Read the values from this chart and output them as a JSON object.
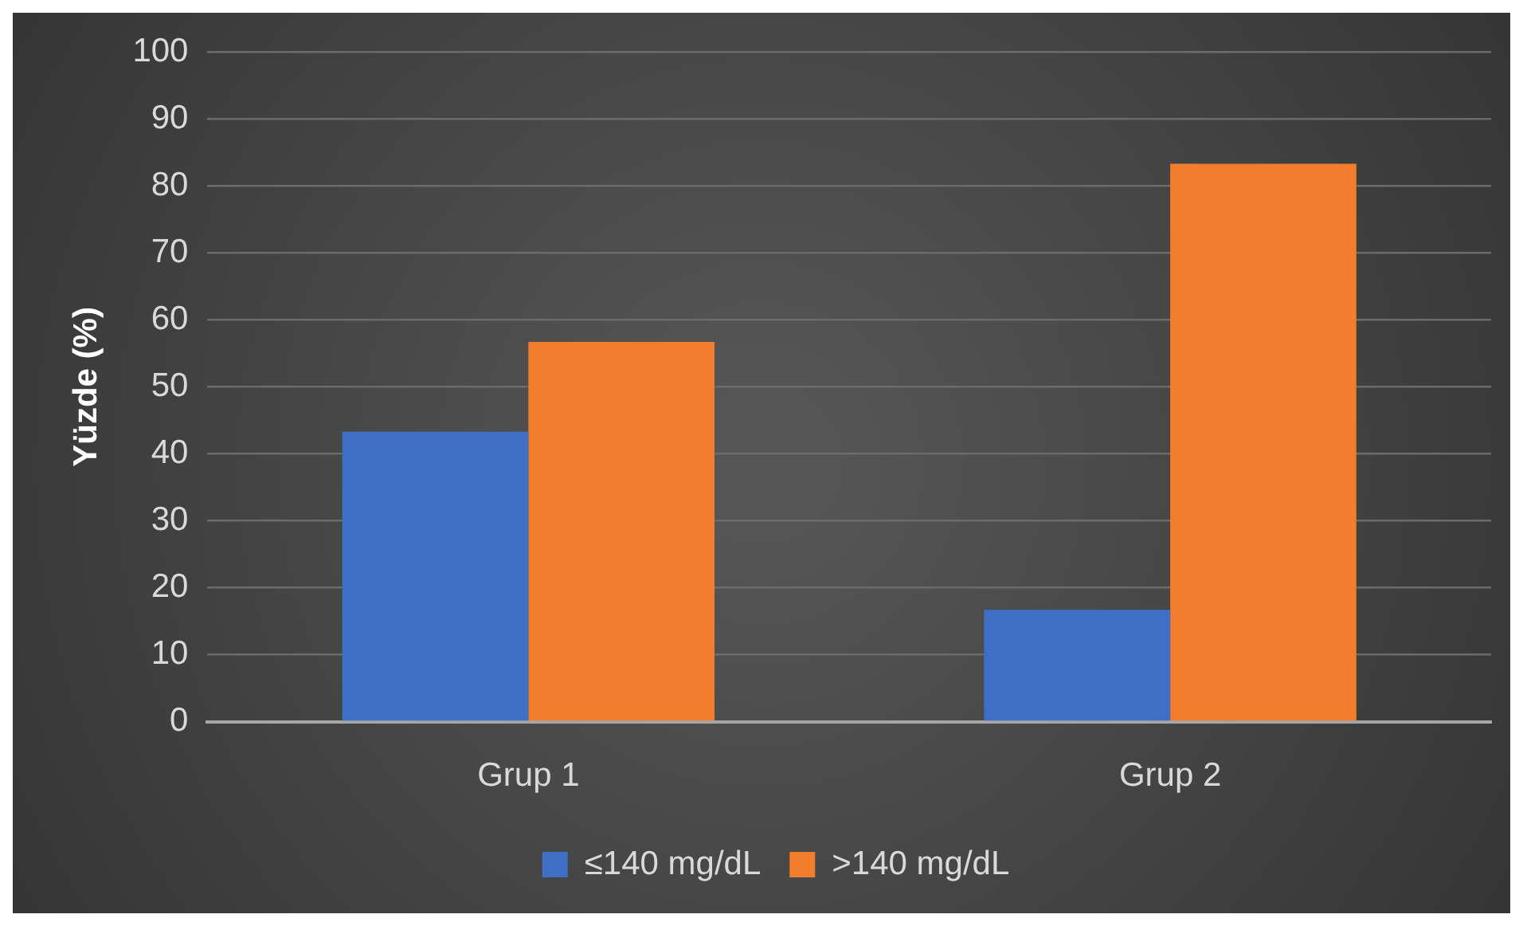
{
  "chart_data": {
    "type": "bar",
    "ylabel": "Yüzde (%)",
    "categories": [
      "Grup 1",
      "Grup 2"
    ],
    "series": [
      {
        "name": "≤140 mg/dL",
        "color": "#3f70c6",
        "values": [
          43.3,
          16.7
        ]
      },
      {
        "name": ">140 mg/dL",
        "color": "#f07e2c",
        "values": [
          56.7,
          83.3
        ]
      }
    ],
    "ylim": [
      0,
      100
    ],
    "yticks": [
      0,
      10,
      20,
      30,
      40,
      50,
      60,
      70,
      80,
      90,
      100
    ],
    "grid": "y",
    "legend": "bottom"
  }
}
